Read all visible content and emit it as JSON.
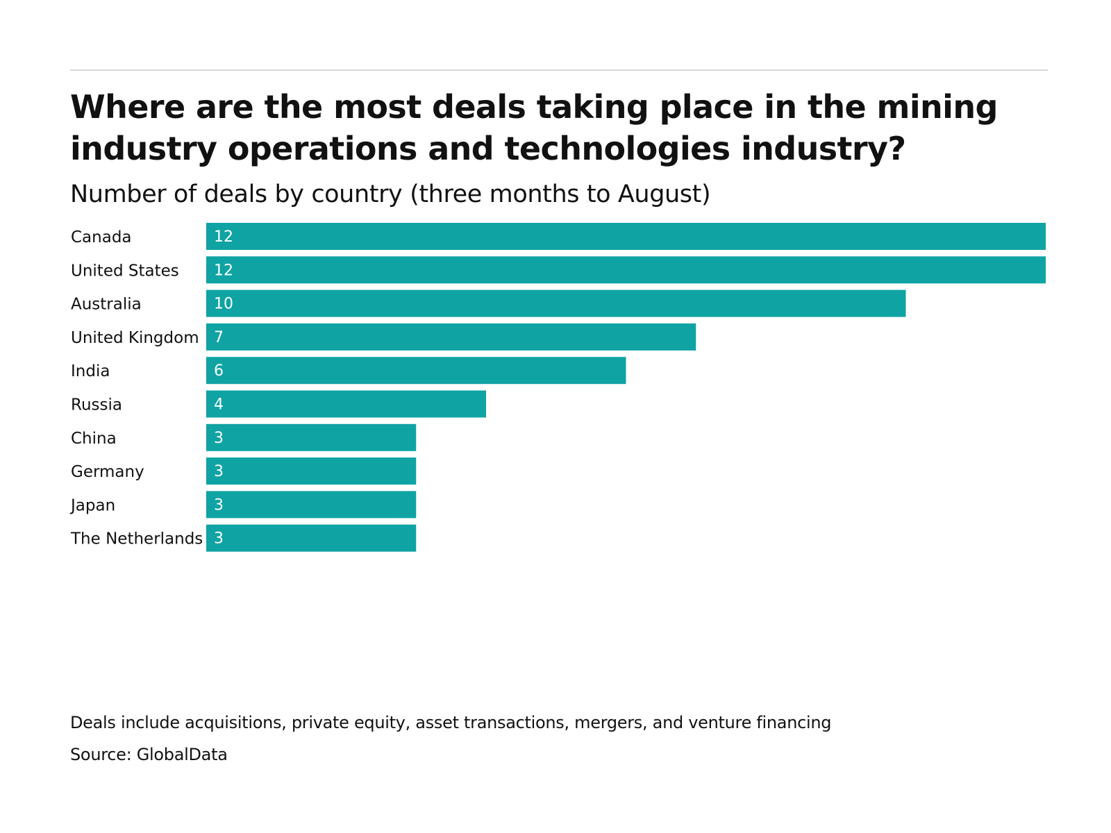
{
  "chart_data": {
    "type": "bar",
    "orientation": "horizontal",
    "title": "Where are the most deals taking place in the mining industry operations and technologies industry?",
    "subtitle": "Number of deals by country (three months to August)",
    "categories": [
      "Canada",
      "United States",
      "Australia",
      "United Kingdom",
      "India",
      "Russia",
      "China",
      "Germany",
      "Japan",
      "The Netherlands"
    ],
    "values": [
      12,
      12,
      10,
      7,
      6,
      4,
      3,
      3,
      3,
      3
    ],
    "xlim": [
      0,
      12
    ],
    "grid": false,
    "legend": "none",
    "bar_color": "#0fa3a3",
    "value_label_color": "#ffffff",
    "footnote": "Deals include acquisitions, private equity, asset transactions, mergers, and venture financing",
    "source": "Source: GlobalData"
  }
}
